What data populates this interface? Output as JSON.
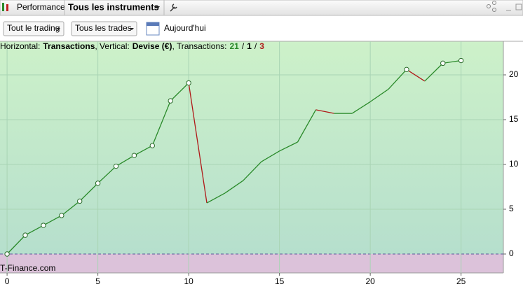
{
  "toolbar": {
    "performance": "Performance",
    "instrument": "Tous les instruments"
  },
  "filters": {
    "trading": "Tout le trading",
    "trades": "Tous les trades",
    "date": "Aujourd'hui"
  },
  "chart_data": {
    "type": "line",
    "info_parts": [
      "Horizontal:",
      "Transactions",
      ", Vertical:",
      "Devise (€)",
      ", Transactions:",
      "21",
      "/",
      "1",
      "/",
      "3"
    ],
    "watermark": "T-Finance.com",
    "x": [
      0,
      1,
      2,
      3,
      4,
      5,
      6,
      7,
      8,
      9,
      10,
      11,
      12,
      13,
      14,
      15,
      16,
      17,
      18,
      19,
      20,
      21,
      22,
      23,
      24,
      25
    ],
    "values": [
      0,
      2.1,
      3.2,
      4.3,
      5.9,
      7.9,
      9.8,
      11.0,
      12.1,
      17.1,
      19.1,
      5.7,
      6.8,
      8.2,
      10.3,
      11.5,
      12.5,
      16.1,
      15.7,
      15.7,
      17.0,
      18.4,
      20.6,
      19.3,
      21.3,
      21.6
    ],
    "markers": [
      true,
      true,
      true,
      true,
      true,
      true,
      true,
      true,
      true,
      true,
      true,
      false,
      false,
      false,
      false,
      false,
      false,
      false,
      false,
      false,
      false,
      false,
      true,
      false,
      true,
      true
    ],
    "colors": {
      "up": "#2a8a2a",
      "down": "#b01818"
    },
    "xlim": [
      -0.39,
      27.33
    ],
    "ylim": [
      -2.11,
      23.75
    ],
    "xticks": [
      0,
      5,
      10,
      15,
      20,
      25
    ],
    "yticks": [
      0,
      5,
      10,
      15,
      20
    ],
    "grid": true
  }
}
